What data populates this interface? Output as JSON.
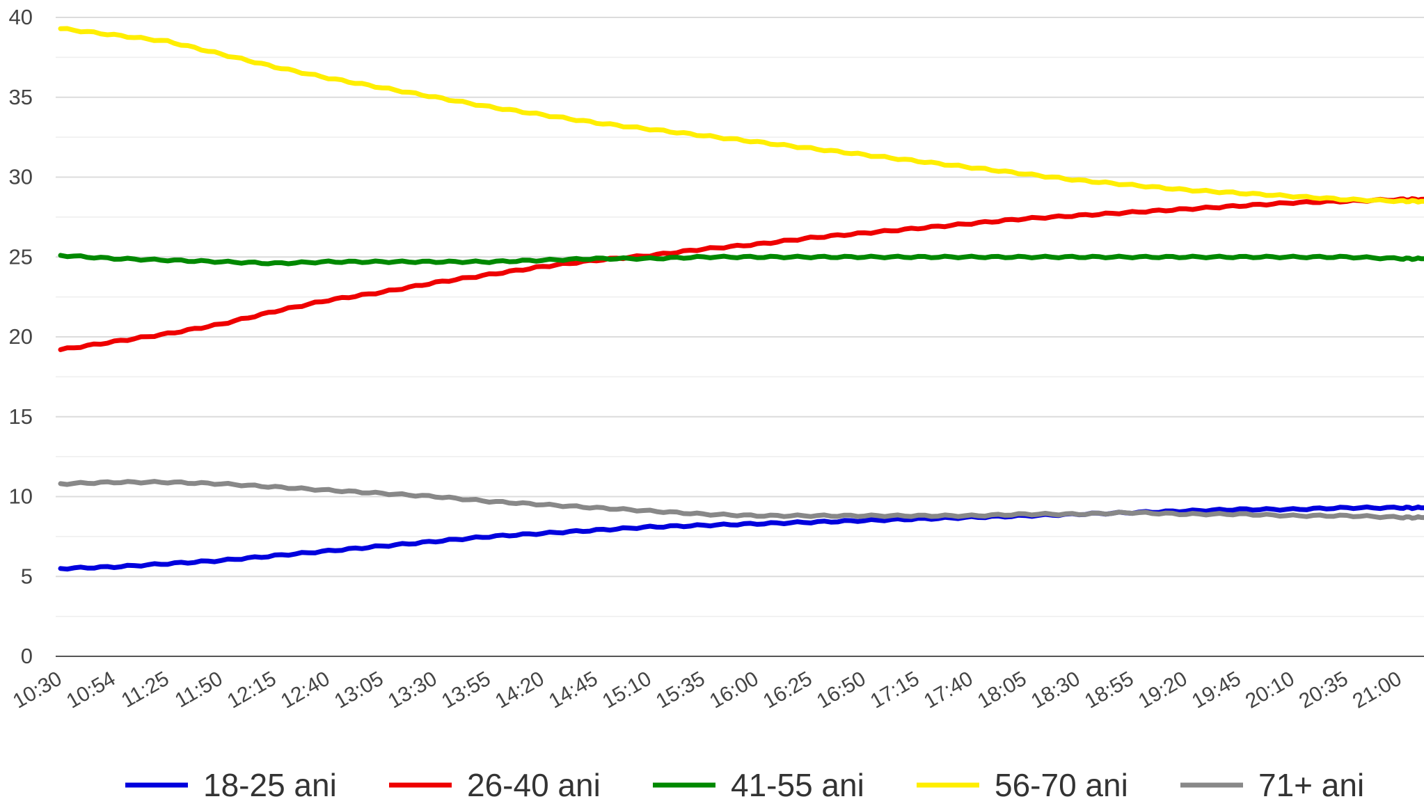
{
  "chart_data": {
    "type": "line",
    "title": "",
    "xlabel": "",
    "ylabel": "",
    "ylim": [
      0,
      40
    ],
    "yticks": [
      "0",
      "5",
      "10",
      "15",
      "20",
      "25",
      "30",
      "35",
      "40"
    ],
    "grid": true,
    "legend_position": "bottom",
    "categories": [
      "10:30",
      "10:54",
      "11:25",
      "11:50",
      "12:15",
      "12:40",
      "13:05",
      "13:30",
      "13:55",
      "14:20",
      "14:45",
      "15:10",
      "15:35",
      "16:00",
      "16:25",
      "16:50",
      "17:15",
      "17:40",
      "18:05",
      "18:30",
      "18:55",
      "19:20",
      "19:45",
      "20:10",
      "20:35",
      "21:00"
    ],
    "series": [
      {
        "name": "18-25 ani",
        "color": "#0000dd",
        "values": [
          5.5,
          5.6,
          5.8,
          6.0,
          6.3,
          6.6,
          6.9,
          7.2,
          7.5,
          7.7,
          7.9,
          8.1,
          8.2,
          8.3,
          8.4,
          8.5,
          8.6,
          8.7,
          8.8,
          8.9,
          9.0,
          9.1,
          9.2,
          9.2,
          9.3,
          9.3
        ]
      },
      {
        "name": "26-40 ani",
        "color": "#ee0000",
        "values": [
          19.2,
          19.7,
          20.2,
          20.8,
          21.6,
          22.3,
          22.8,
          23.4,
          23.9,
          24.4,
          24.8,
          25.1,
          25.5,
          25.8,
          26.2,
          26.5,
          26.8,
          27.1,
          27.4,
          27.6,
          27.8,
          28.0,
          28.2,
          28.4,
          28.5,
          28.6
        ]
      },
      {
        "name": "41-55 ani",
        "color": "#008800",
        "values": [
          25.1,
          24.9,
          24.8,
          24.7,
          24.6,
          24.7,
          24.7,
          24.7,
          24.7,
          24.8,
          24.9,
          24.9,
          25.0,
          25.0,
          25.0,
          25.0,
          25.0,
          25.0,
          25.0,
          25.0,
          25.0,
          25.0,
          25.0,
          25.0,
          25.0,
          24.9
        ]
      },
      {
        "name": "56-70 ani",
        "color": "#ffee00",
        "values": [
          39.3,
          38.9,
          38.5,
          37.7,
          36.9,
          36.2,
          35.6,
          35.0,
          34.4,
          33.9,
          33.4,
          33.0,
          32.6,
          32.2,
          31.8,
          31.4,
          31.0,
          30.6,
          30.2,
          29.8,
          29.5,
          29.2,
          29.0,
          28.8,
          28.6,
          28.5
        ]
      },
      {
        "name": "71+ ani",
        "color": "#888888",
        "values": [
          10.8,
          10.9,
          10.9,
          10.8,
          10.6,
          10.4,
          10.2,
          10.0,
          9.7,
          9.5,
          9.3,
          9.1,
          8.9,
          8.8,
          8.8,
          8.8,
          8.8,
          8.8,
          8.9,
          8.9,
          9.0,
          8.9,
          8.9,
          8.8,
          8.8,
          8.7
        ]
      }
    ]
  }
}
